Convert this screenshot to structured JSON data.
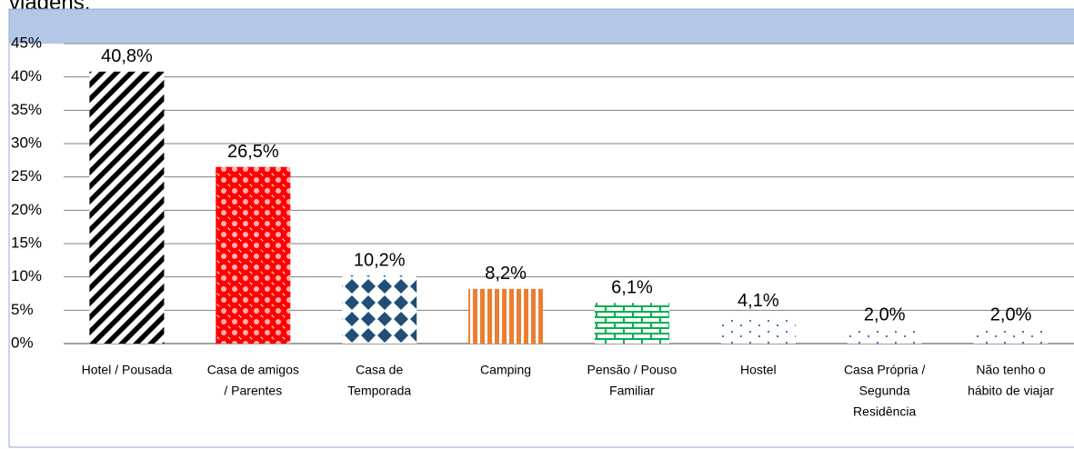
{
  "caption": "viagens.",
  "chart_data": {
    "type": "bar",
    "categories": [
      [
        "Hotel / Pousada"
      ],
      [
        "Casa de amigos",
        "/ Parentes"
      ],
      [
        "Casa de",
        "Temporada"
      ],
      [
        "Camping"
      ],
      [
        "Pensão / Pouso",
        "Familiar"
      ],
      [
        "Hostel"
      ],
      [
        "Casa Própria /",
        "Segunda",
        "Residência"
      ],
      [
        "Não tenho o",
        "hábito de viajar"
      ]
    ],
    "values": [
      40.8,
      26.5,
      10.2,
      8.2,
      6.1,
      4.1,
      2.0,
      2.0
    ],
    "value_labels": [
      "40,8%",
      "26,5%",
      "10,2%",
      "8,2%",
      "6,1%",
      "4,1%",
      "2,0%",
      "2,0%"
    ],
    "colors": [
      "#000000",
      "#ff0000",
      "#1f4e79",
      "#ed7d31",
      "#00b050",
      "#4472c4",
      "#4472c4",
      "#4472c4"
    ],
    "ylim": [
      0,
      45
    ],
    "yticks": [
      {
        "value": 0,
        "label": "0%"
      },
      {
        "value": 5,
        "label": "5%"
      },
      {
        "value": 10,
        "label": "10%"
      },
      {
        "value": 15,
        "label": "15%"
      },
      {
        "value": 20,
        "label": "20%"
      },
      {
        "value": 25,
        "label": "25%"
      },
      {
        "value": 30,
        "label": "30%"
      },
      {
        "value": 35,
        "label": "35%"
      },
      {
        "value": 40,
        "label": "40%"
      },
      {
        "value": 45,
        "label": "45%"
      }
    ],
    "grid": true
  }
}
